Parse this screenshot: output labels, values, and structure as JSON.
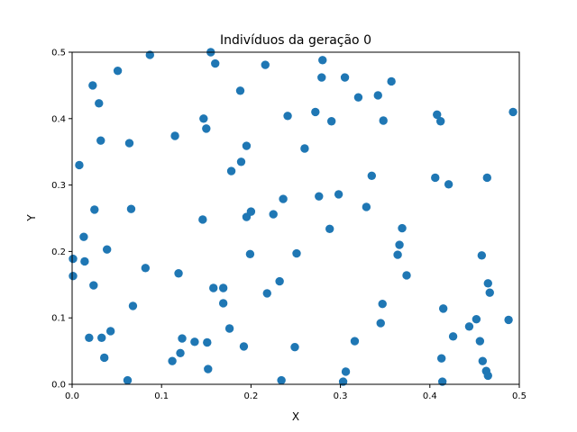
{
  "chart_data": {
    "type": "scatter",
    "title": "Indivíduos da geração 0",
    "xlabel": "X",
    "ylabel": "Y",
    "xlim": [
      0.0,
      0.5
    ],
    "ylim": [
      0.0,
      0.5
    ],
    "xticks": [
      "0.0",
      "0.1",
      "0.2",
      "0.3",
      "0.4",
      "0.5"
    ],
    "yticks": [
      "0.0",
      "0.1",
      "0.2",
      "0.3",
      "0.4",
      "0.5"
    ],
    "grid": false,
    "marker_color": "#1f77b4",
    "points": [
      [
        0.001,
        0.189
      ],
      [
        0.001,
        0.163
      ],
      [
        0.008,
        0.33
      ],
      [
        0.013,
        0.222
      ],
      [
        0.014,
        0.185
      ],
      [
        0.019,
        0.07
      ],
      [
        0.023,
        0.45
      ],
      [
        0.024,
        0.149
      ],
      [
        0.025,
        0.263
      ],
      [
        0.03,
        0.423
      ],
      [
        0.032,
        0.367
      ],
      [
        0.033,
        0.07
      ],
      [
        0.036,
        0.04
      ],
      [
        0.039,
        0.203
      ],
      [
        0.043,
        0.08
      ],
      [
        0.051,
        0.472
      ],
      [
        0.062,
        0.006
      ],
      [
        0.064,
        0.363
      ],
      [
        0.066,
        0.264
      ],
      [
        0.068,
        0.118
      ],
      [
        0.082,
        0.175
      ],
      [
        0.087,
        0.496
      ],
      [
        0.112,
        0.035
      ],
      [
        0.115,
        0.374
      ],
      [
        0.119,
        0.167
      ],
      [
        0.121,
        0.047
      ],
      [
        0.123,
        0.069
      ],
      [
        0.137,
        0.064
      ],
      [
        0.146,
        0.248
      ],
      [
        0.147,
        0.4
      ],
      [
        0.15,
        0.385
      ],
      [
        0.151,
        0.063
      ],
      [
        0.152,
        0.023
      ],
      [
        0.155,
        0.5
      ],
      [
        0.158,
        0.145
      ],
      [
        0.16,
        0.483
      ],
      [
        0.169,
        0.145
      ],
      [
        0.169,
        0.122
      ],
      [
        0.176,
        0.084
      ],
      [
        0.178,
        0.321
      ],
      [
        0.188,
        0.442
      ],
      [
        0.189,
        0.335
      ],
      [
        0.192,
        0.057
      ],
      [
        0.195,
        0.359
      ],
      [
        0.195,
        0.252
      ],
      [
        0.199,
        0.196
      ],
      [
        0.2,
        0.26
      ],
      [
        0.216,
        0.481
      ],
      [
        0.218,
        0.137
      ],
      [
        0.225,
        0.256
      ],
      [
        0.232,
        0.155
      ],
      [
        0.234,
        0.006
      ],
      [
        0.236,
        0.279
      ],
      [
        0.241,
        0.404
      ],
      [
        0.249,
        0.056
      ],
      [
        0.251,
        0.197
      ],
      [
        0.26,
        0.355
      ],
      [
        0.272,
        0.41
      ],
      [
        0.276,
        0.283
      ],
      [
        0.279,
        0.462
      ],
      [
        0.28,
        0.488
      ],
      [
        0.288,
        0.234
      ],
      [
        0.29,
        0.396
      ],
      [
        0.298,
        0.286
      ],
      [
        0.303,
        0.004
      ],
      [
        0.305,
        0.462
      ],
      [
        0.306,
        0.019
      ],
      [
        0.316,
        0.065
      ],
      [
        0.32,
        0.432
      ],
      [
        0.329,
        0.267
      ],
      [
        0.335,
        0.314
      ],
      [
        0.342,
        0.435
      ],
      [
        0.345,
        0.092
      ],
      [
        0.347,
        0.121
      ],
      [
        0.348,
        0.397
      ],
      [
        0.357,
        0.456
      ],
      [
        0.364,
        0.195
      ],
      [
        0.366,
        0.21
      ],
      [
        0.369,
        0.235
      ],
      [
        0.374,
        0.164
      ],
      [
        0.406,
        0.311
      ],
      [
        0.408,
        0.406
      ],
      [
        0.412,
        0.396
      ],
      [
        0.413,
        0.039
      ],
      [
        0.414,
        0.004
      ],
      [
        0.415,
        0.114
      ],
      [
        0.421,
        0.301
      ],
      [
        0.426,
        0.072
      ],
      [
        0.444,
        0.087
      ],
      [
        0.452,
        0.098
      ],
      [
        0.456,
        0.065
      ],
      [
        0.458,
        0.194
      ],
      [
        0.459,
        0.035
      ],
      [
        0.463,
        0.02
      ],
      [
        0.464,
        0.311
      ],
      [
        0.465,
        0.152
      ],
      [
        0.465,
        0.013
      ],
      [
        0.467,
        0.138
      ],
      [
        0.488,
        0.097
      ],
      [
        0.493,
        0.41
      ]
    ]
  }
}
